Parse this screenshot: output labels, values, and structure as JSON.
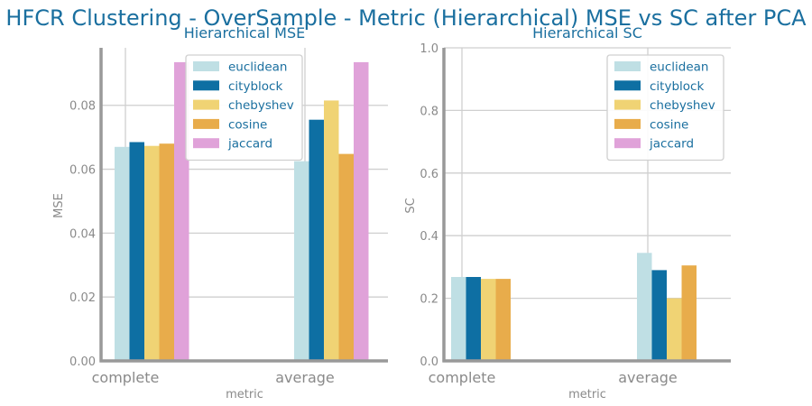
{
  "figure": {
    "suptitle": "HFCR Clustering - OverSample - Metric (Hierarchical) MSE vs SC after PCA"
  },
  "colors": {
    "euclidean": "#bfdfe4",
    "cityblock": "#0e6fa3",
    "chebyshev": "#f0d374",
    "cosine": "#e8ac4b",
    "jaccard": "#e0a2d9",
    "title": "#1a6f9f",
    "grid": "#cfcfcf",
    "spine": "#999999"
  },
  "chart_data": [
    {
      "type": "bar",
      "title": "Hierarchical MSE",
      "xlabel": "metric",
      "ylabel": "MSE",
      "categories": [
        "complete",
        "average"
      ],
      "ylim": [
        0,
        0.098
      ],
      "yticks": [
        "0.00",
        "0.02",
        "0.04",
        "0.06",
        "0.08"
      ],
      "ytick_values": [
        0,
        0.02,
        0.04,
        0.06,
        0.08
      ],
      "legend_position": "top-right",
      "series": [
        {
          "name": "euclidean",
          "values": [
            0.067,
            0.0625
          ]
        },
        {
          "name": "cityblock",
          "values": [
            0.0685,
            0.0755
          ]
        },
        {
          "name": "chebyshev",
          "values": [
            0.0673,
            0.0815
          ]
        },
        {
          "name": "cosine",
          "values": [
            0.068,
            0.0648
          ]
        },
        {
          "name": "jaccard",
          "values": [
            0.0935,
            0.0935
          ]
        }
      ]
    },
    {
      "type": "bar",
      "title": "Hierarchical SC",
      "xlabel": "metric",
      "ylabel": "SC",
      "categories": [
        "complete",
        "average"
      ],
      "ylim": [
        0,
        1.0
      ],
      "yticks": [
        "0.0",
        "0.2",
        "0.4",
        "0.6",
        "0.8",
        "1.0"
      ],
      "ytick_values": [
        0,
        0.2,
        0.4,
        0.6,
        0.8,
        1.0
      ],
      "legend_position": "top-right",
      "series": [
        {
          "name": "euclidean",
          "values": [
            0.268,
            0.345
          ]
        },
        {
          "name": "cityblock",
          "values": [
            0.268,
            0.29
          ]
        },
        {
          "name": "chebyshev",
          "values": [
            0.262,
            0.2
          ]
        },
        {
          "name": "cosine",
          "values": [
            0.262,
            0.305
          ]
        },
        {
          "name": "jaccard",
          "values": [
            0,
            0
          ]
        }
      ]
    }
  ]
}
